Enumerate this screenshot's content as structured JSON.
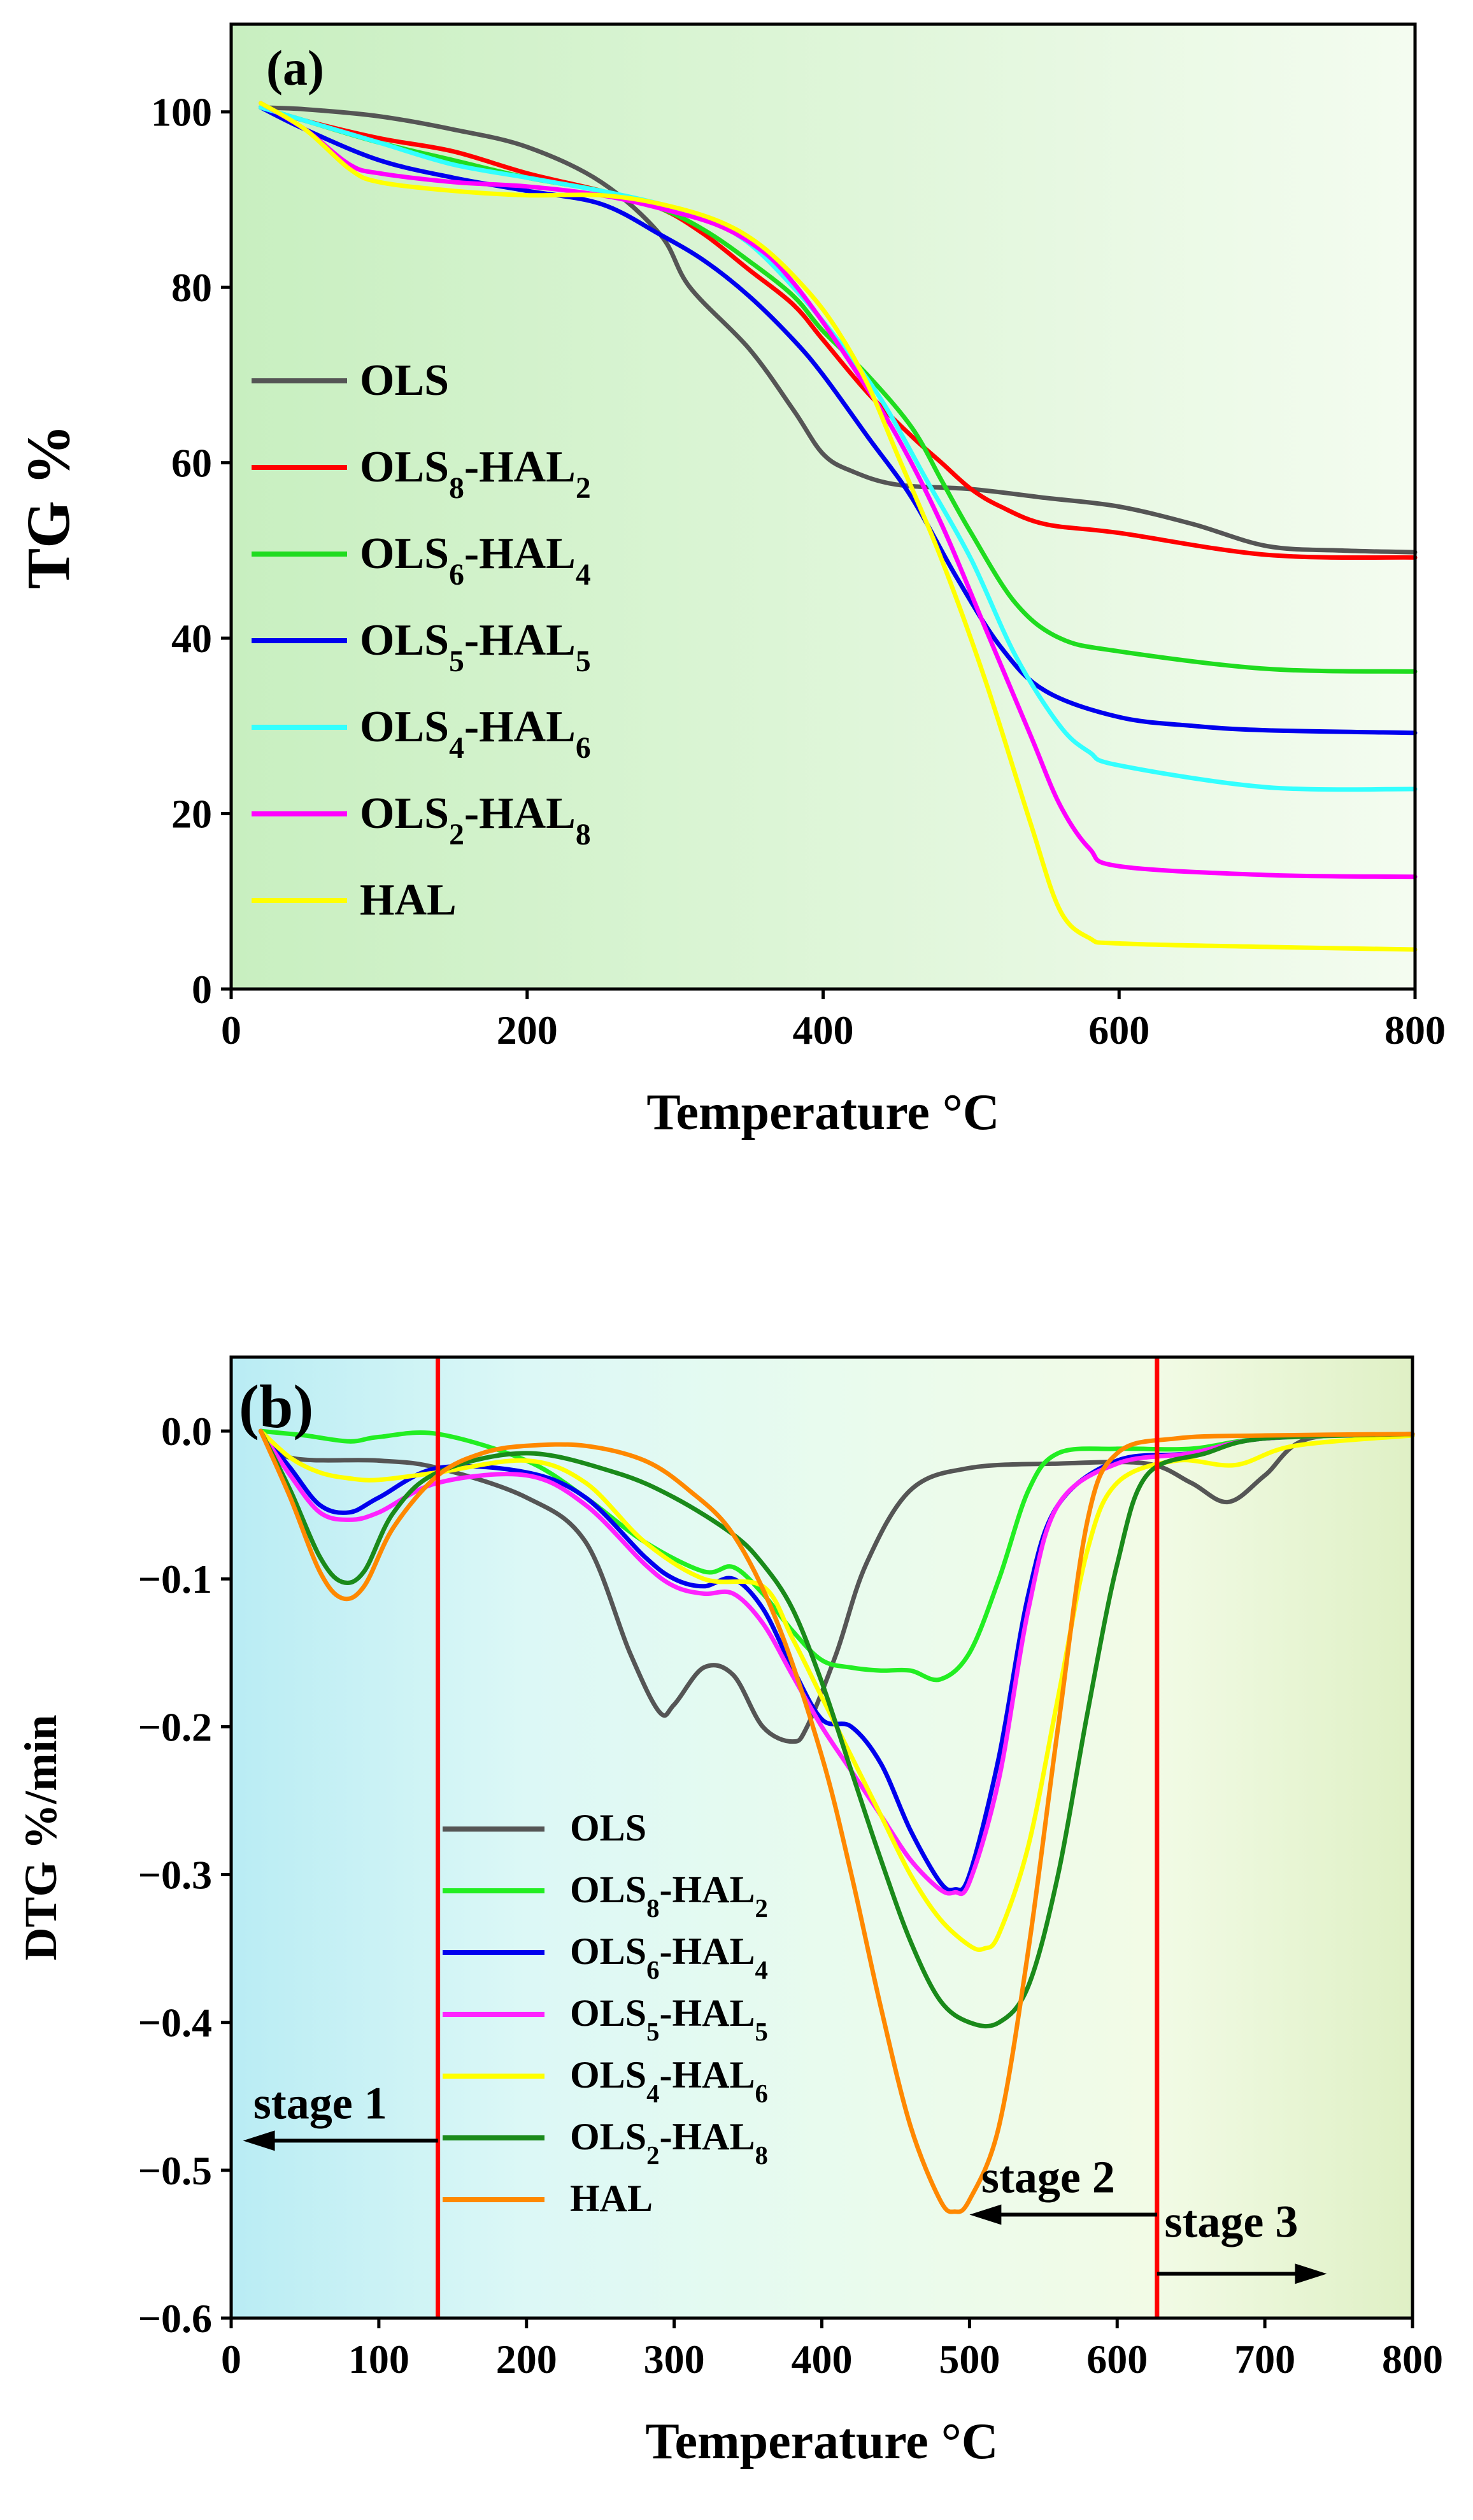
{
  "chart_data": [
    {
      "type": "line",
      "panel_label": "(a)",
      "xlabel": "Temperature °C",
      "ylabel": "TG %",
      "xlim": [
        0,
        800
      ],
      "ylim": [
        0,
        110
      ],
      "xticks": [
        0,
        200,
        400,
        600,
        800
      ],
      "yticks": [
        0,
        20,
        40,
        60,
        80,
        100
      ],
      "xtick_labels": [
        "0",
        "200",
        "400",
        "600",
        "800"
      ],
      "ytick_labels": [
        "0",
        "20",
        "40",
        "60",
        "80",
        "100"
      ],
      "background": [
        "#c8efc0",
        "#f4fcf0"
      ],
      "legend_position": "left",
      "series": [
        {
          "name": "OLS",
          "sub1": "",
          "sub2": "",
          "color": "#555555",
          "x": [
            20,
            50,
            100,
            150,
            200,
            250,
            290,
            310,
            350,
            380,
            400,
            420,
            450,
            500,
            550,
            600,
            650,
            700,
            750,
            800
          ],
          "y": [
            100.5,
            100.3,
            99.5,
            98,
            96,
            92,
            86,
            80,
            73,
            66,
            61,
            59,
            57.5,
            57,
            56,
            55,
            53,
            50.5,
            50,
            49.8
          ]
        },
        {
          "name": "OLS",
          "sub1": "8",
          "sub2": "2",
          "color": "#ff0000",
          "x": [
            20,
            50,
            100,
            150,
            200,
            250,
            290,
            320,
            350,
            380,
            400,
            430,
            460,
            480,
            500,
            520,
            550,
            600,
            700,
            800
          ],
          "y": [
            100.5,
            99,
            97,
            95.5,
            93,
            91,
            89,
            86,
            82,
            78,
            74,
            68,
            63,
            60,
            57,
            55,
            53,
            52,
            49.5,
            49.2
          ]
        },
        {
          "name": "OLS",
          "sub1": "6",
          "sub2": "4",
          "color": "#1fdc1f",
          "x": [
            20,
            50,
            100,
            150,
            200,
            250,
            290,
            320,
            350,
            380,
            400,
            430,
            460,
            480,
            500,
            530,
            560,
            600,
            700,
            800
          ],
          "y": [
            100.5,
            99,
            96.5,
            94.5,
            92.5,
            91,
            89,
            86.5,
            83,
            79,
            75,
            70,
            64,
            58,
            52,
            44,
            40,
            38.5,
            36.5,
            36.2
          ]
        },
        {
          "name": "OLS",
          "sub1": "5",
          "sub2": "5",
          "color": "#0000ee",
          "x": [
            20,
            50,
            100,
            150,
            200,
            250,
            290,
            320,
            350,
            380,
            400,
            430,
            460,
            490,
            520,
            550,
            600,
            650,
            700,
            800
          ],
          "y": [
            100.5,
            98,
            94.5,
            92.5,
            91,
            89.5,
            86,
            83,
            79,
            74,
            70,
            63,
            56,
            47,
            39,
            34,
            31,
            30,
            29.5,
            29.2
          ]
        },
        {
          "name": "OLS",
          "sub1": "4",
          "sub2": "6",
          "color": "#33ffff",
          "x": [
            20,
            50,
            100,
            150,
            200,
            250,
            290,
            320,
            350,
            380,
            410,
            440,
            470,
            500,
            530,
            560,
            580,
            600,
            700,
            800
          ],
          "y": [
            100.5,
            99,
            96.5,
            94,
            92.5,
            91,
            89.5,
            88,
            85,
            80,
            74,
            67,
            58,
            49,
            38,
            30,
            27,
            25.5,
            23,
            22.8
          ]
        },
        {
          "name": "OLS",
          "sub1": "2",
          "sub2": "8",
          "color": "#ff00ff",
          "x": [
            20,
            50,
            80,
            100,
            150,
            200,
            250,
            290,
            330,
            360,
            380,
            400,
            420,
            450,
            480,
            510,
            540,
            560,
            580,
            600,
            700,
            800
          ],
          "y": [
            101,
            98,
            94,
            93,
            92,
            91.5,
            90.5,
            89,
            87,
            84,
            80.5,
            76,
            71,
            63,
            53,
            41,
            29,
            21,
            16,
            14,
            13,
            12.8
          ]
        },
        {
          "name": "HAL",
          "sub1": "",
          "sub2": "",
          "color": "#ffff00",
          "x": [
            20,
            50,
            80,
            100,
            150,
            200,
            250,
            290,
            330,
            360,
            390,
            410,
            430,
            450,
            480,
            510,
            540,
            560,
            580,
            600,
            700,
            800
          ],
          "y": [
            101,
            98,
            93.5,
            92,
            91,
            90.5,
            90.5,
            89.5,
            87.5,
            84.5,
            79.5,
            75,
            69,
            61,
            49,
            35,
            19,
            9,
            5.8,
            5.2,
            4.8,
            4.5
          ]
        }
      ]
    },
    {
      "type": "line",
      "panel_label": "(b)",
      "xlabel": "Temperature °C",
      "ylabel": "DTG %/min",
      "xlim": [
        0,
        800
      ],
      "ylim": [
        -0.6,
        0.05
      ],
      "xticks": [
        0,
        100,
        200,
        300,
        400,
        500,
        600,
        700,
        800
      ],
      "yticks": [
        -0.6,
        -0.5,
        -0.4,
        -0.3,
        -0.2,
        -0.1,
        0.0
      ],
      "xtick_labels": [
        "0",
        "100",
        "200",
        "300",
        "400",
        "500",
        "600",
        "700",
        "800"
      ],
      "ytick_labels": [
        "−0.6",
        "−0.5",
        "−0.4",
        "−0.3",
        "−0.2",
        "−0.1",
        "0.0"
      ],
      "background_stops": [
        {
          "at": 0.0,
          "color": "#b9ecf4"
        },
        {
          "at": 0.25,
          "color": "#dcf8f6"
        },
        {
          "at": 0.5,
          "color": "#e8fbee"
        },
        {
          "at": 0.78,
          "color": "#f2fbe6"
        },
        {
          "at": 1.0,
          "color": "#dff0c5"
        }
      ],
      "stage_boundaries": [
        140,
        627
      ],
      "stage_line_color": "#ff0000",
      "stages": [
        {
          "label": "stage 1",
          "label_x": 15,
          "label_y": -0.465,
          "arrow_from": 140,
          "arrow_to": 8,
          "arrow_y": -0.48
        },
        {
          "label": "stage 2",
          "label_x": 508,
          "label_y": -0.515,
          "arrow_from": 627,
          "arrow_to": 500,
          "arrow_y": -0.53
        },
        {
          "label": "stage 3",
          "label_x": 632,
          "label_y": -0.545,
          "arrow_from": 627,
          "arrow_to": 742,
          "arrow_y": -0.57
        }
      ],
      "legend_position": "bottom-center",
      "series": [
        {
          "name": "OLS",
          "sub1": "",
          "sub2": "",
          "color": "#555555",
          "x": [
            20,
            40,
            100,
            140,
            200,
            240,
            270,
            290,
            300,
            320,
            340,
            360,
            380,
            390,
            410,
            430,
            460,
            500,
            560,
            620,
            650,
            675,
            700,
            730,
            800
          ],
          "y": [
            0.0,
            -0.018,
            -0.02,
            -0.025,
            -0.045,
            -0.075,
            -0.15,
            -0.19,
            -0.185,
            -0.16,
            -0.165,
            -0.2,
            -0.21,
            -0.2,
            -0.15,
            -0.09,
            -0.04,
            -0.025,
            -0.022,
            -0.022,
            -0.035,
            -0.048,
            -0.03,
            -0.005,
            -0.003
          ]
        },
        {
          "name": "OLS",
          "sub1": "8",
          "sub2": "2",
          "color": "#22ee22",
          "x": [
            20,
            50,
            80,
            100,
            140,
            200,
            240,
            280,
            320,
            340,
            360,
            380,
            400,
            420,
            440,
            460,
            480,
            500,
            520,
            540,
            560,
            600,
            650,
            700,
            800
          ],
          "y": [
            0.0,
            -0.003,
            -0.007,
            -0.004,
            -0.002,
            -0.02,
            -0.045,
            -0.075,
            -0.095,
            -0.092,
            -0.11,
            -0.135,
            -0.155,
            -0.16,
            -0.162,
            -0.162,
            -0.168,
            -0.15,
            -0.1,
            -0.04,
            -0.015,
            -0.012,
            -0.012,
            -0.005,
            -0.002
          ]
        },
        {
          "name": "OLS",
          "sub1": "6",
          "sub2": "4",
          "color": "#0000ee",
          "x": [
            20,
            40,
            60,
            80,
            100,
            140,
            200,
            240,
            280,
            300,
            320,
            340,
            360,
            380,
            400,
            420,
            440,
            460,
            480,
            490,
            500,
            520,
            540,
            560,
            600,
            650,
            700,
            800
          ],
          "y": [
            0.0,
            -0.025,
            -0.05,
            -0.055,
            -0.045,
            -0.025,
            -0.028,
            -0.045,
            -0.085,
            -0.1,
            -0.105,
            -0.1,
            -0.12,
            -0.16,
            -0.195,
            -0.2,
            -0.225,
            -0.27,
            -0.305,
            -0.31,
            -0.3,
            -0.22,
            -0.11,
            -0.05,
            -0.02,
            -0.015,
            -0.005,
            -0.002
          ]
        },
        {
          "name": "OLS",
          "sub1": "5",
          "sub2": "5",
          "color": "#ff22ff",
          "x": [
            20,
            40,
            60,
            80,
            100,
            140,
            200,
            240,
            280,
            300,
            320,
            340,
            360,
            380,
            400,
            420,
            440,
            460,
            480,
            490,
            500,
            520,
            540,
            560,
            600,
            650,
            700,
            800
          ],
          "y": [
            0.0,
            -0.03,
            -0.055,
            -0.06,
            -0.055,
            -0.035,
            -0.03,
            -0.05,
            -0.09,
            -0.105,
            -0.11,
            -0.11,
            -0.13,
            -0.165,
            -0.2,
            -0.23,
            -0.26,
            -0.29,
            -0.31,
            -0.312,
            -0.305,
            -0.235,
            -0.12,
            -0.05,
            -0.022,
            -0.015,
            -0.005,
            -0.002
          ]
        },
        {
          "name": "OLS",
          "sub1": "4",
          "sub2": "6",
          "color": "#ffff00",
          "x": [
            20,
            40,
            60,
            80,
            100,
            140,
            200,
            240,
            280,
            320,
            360,
            380,
            400,
            420,
            440,
            460,
            480,
            500,
            510,
            520,
            540,
            560,
            580,
            600,
            640,
            680,
            720,
            800
          ],
          "y": [
            0.0,
            -0.018,
            -0.028,
            -0.032,
            -0.033,
            -0.028,
            -0.02,
            -0.035,
            -0.075,
            -0.1,
            -0.105,
            -0.14,
            -0.18,
            -0.22,
            -0.26,
            -0.3,
            -0.33,
            -0.348,
            -0.35,
            -0.34,
            -0.28,
            -0.18,
            -0.08,
            -0.035,
            -0.02,
            -0.023,
            -0.01,
            -0.003
          ]
        },
        {
          "name": "OLS",
          "sub1": "2",
          "sub2": "8",
          "color": "#1a8a1a",
          "x": [
            20,
            40,
            60,
            75,
            90,
            110,
            140,
            200,
            260,
            300,
            340,
            360,
            380,
            400,
            420,
            440,
            460,
            480,
            500,
            520,
            540,
            560,
            580,
            600,
            620,
            660,
            700,
            800
          ],
          "y": [
            0.0,
            -0.04,
            -0.085,
            -0.102,
            -0.095,
            -0.055,
            -0.028,
            -0.015,
            -0.028,
            -0.045,
            -0.07,
            -0.09,
            -0.12,
            -0.17,
            -0.23,
            -0.29,
            -0.345,
            -0.385,
            -0.4,
            -0.4,
            -0.375,
            -0.3,
            -0.19,
            -0.09,
            -0.03,
            -0.015,
            -0.005,
            -0.002
          ]
        },
        {
          "name": "HAL",
          "sub1": "",
          "sub2": "",
          "color": "#ff8800",
          "x": [
            20,
            40,
            60,
            75,
            90,
            110,
            140,
            170,
            200,
            240,
            280,
            310,
            340,
            370,
            400,
            420,
            440,
            460,
            480,
            490,
            500,
            520,
            540,
            560,
            580,
            600,
            640,
            700,
            800
          ],
          "y": [
            0.0,
            -0.045,
            -0.095,
            -0.113,
            -0.105,
            -0.065,
            -0.03,
            -0.015,
            -0.01,
            -0.01,
            -0.02,
            -0.04,
            -0.07,
            -0.13,
            -0.22,
            -0.3,
            -0.39,
            -0.47,
            -0.52,
            -0.528,
            -0.52,
            -0.47,
            -0.35,
            -0.2,
            -0.06,
            -0.015,
            -0.005,
            -0.003,
            -0.002
          ]
        }
      ]
    }
  ]
}
